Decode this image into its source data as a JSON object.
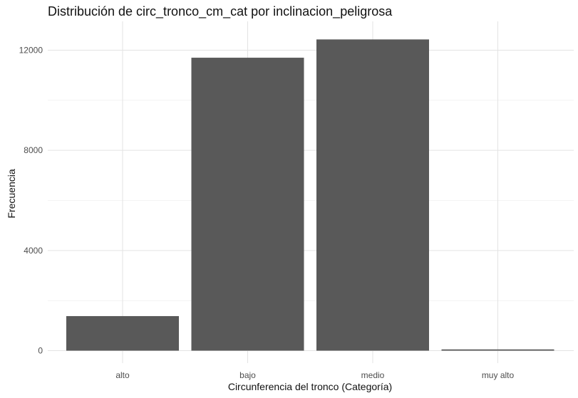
{
  "chart_data": {
    "type": "bar",
    "title": "Distribución de circ_tronco_cm_cat por inclinacion_peligrosa",
    "xlabel": "Circunferencia del tronco (Categoría)",
    "ylabel": "Frecuencia",
    "categories": [
      "alto",
      "bajo",
      "medio",
      "muy alto"
    ],
    "values": [
      1380,
      11700,
      12430,
      50
    ],
    "ylim": [
      0,
      13000
    ],
    "yticks": [
      0,
      4000,
      8000,
      12000
    ],
    "ytick_labels": [
      "0",
      "4000",
      "8000",
      "12000"
    ],
    "bar_color": "#595959",
    "grid": true,
    "legend": "none"
  }
}
